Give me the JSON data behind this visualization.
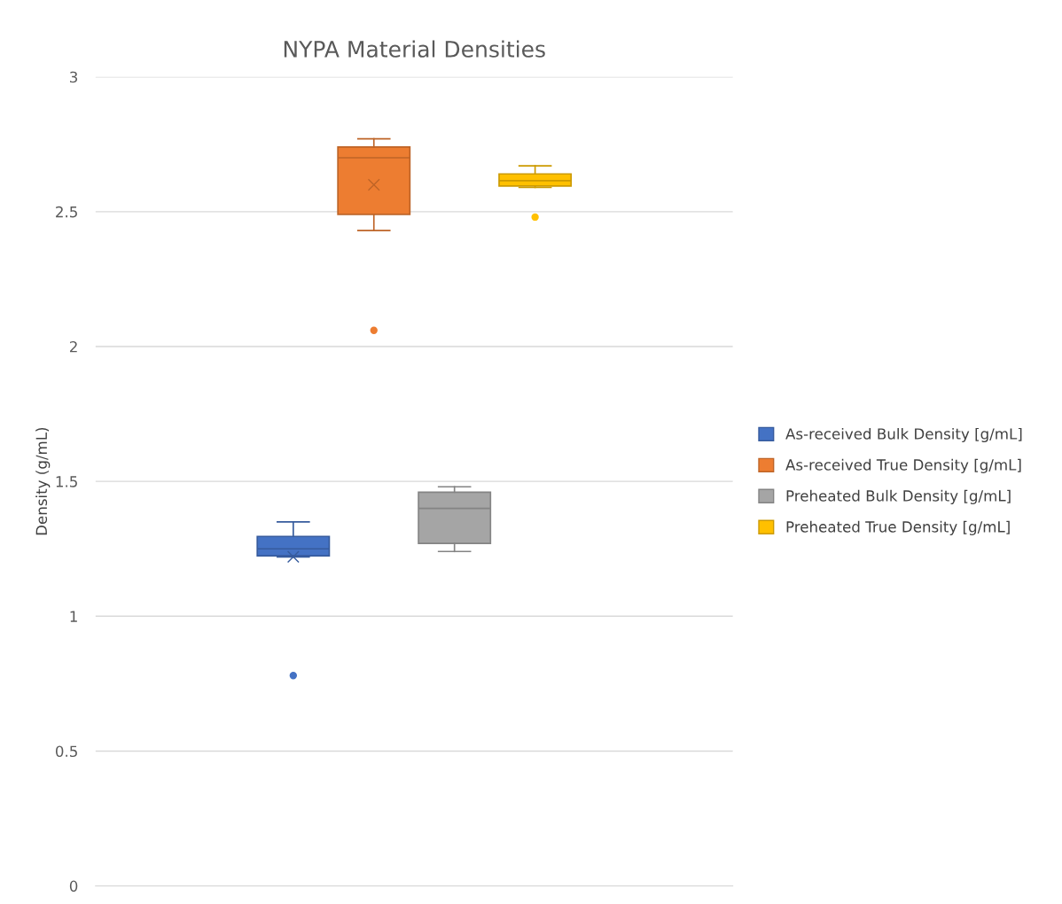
{
  "chart_data": {
    "type": "box",
    "title": "NYPA Material Densities",
    "ylabel": "Density (g/mL)",
    "categories": [
      null
    ],
    "series": [
      {
        "name": "As-received Bulk Density [g/mL]",
        "color": "#4472c4",
        "boxes": [
          {
            "low": 1.22,
            "q1": 1.224,
            "median": 1.25,
            "q3": 1.296,
            "high": 1.35,
            "mean": 1.22,
            "outliers": [
              0.78
            ]
          }
        ]
      },
      {
        "name": "As-received True Density [g/mL]",
        "color": "#ed7d31",
        "boxes": [
          {
            "low": 2.43,
            "q1": 2.49,
            "median": 2.7,
            "q3": 2.74,
            "high": 2.77,
            "mean": 2.6,
            "outliers": [
              2.06
            ]
          }
        ]
      },
      {
        "name": "Preheated Bulk Density [g/mL]",
        "color": "#a5a5a5",
        "boxes": [
          {
            "low": 1.24,
            "q1": 1.27,
            "median": 1.4,
            "q3": 1.46,
            "high": 1.48
          }
        ]
      },
      {
        "name": "Preheated True Density [g/mL]",
        "color": "#ffc000",
        "boxes": [
          {
            "low": 2.59,
            "q1": 2.595,
            "median": 2.615,
            "q3": 2.64,
            "high": 2.67,
            "outliers": [
              2.48
            ]
          }
        ]
      }
    ],
    "ylim": [
      0,
      3
    ],
    "yticks": [
      0,
      0.5,
      1,
      1.5,
      2,
      2.5,
      3
    ],
    "grid": "y",
    "legend": "right"
  }
}
